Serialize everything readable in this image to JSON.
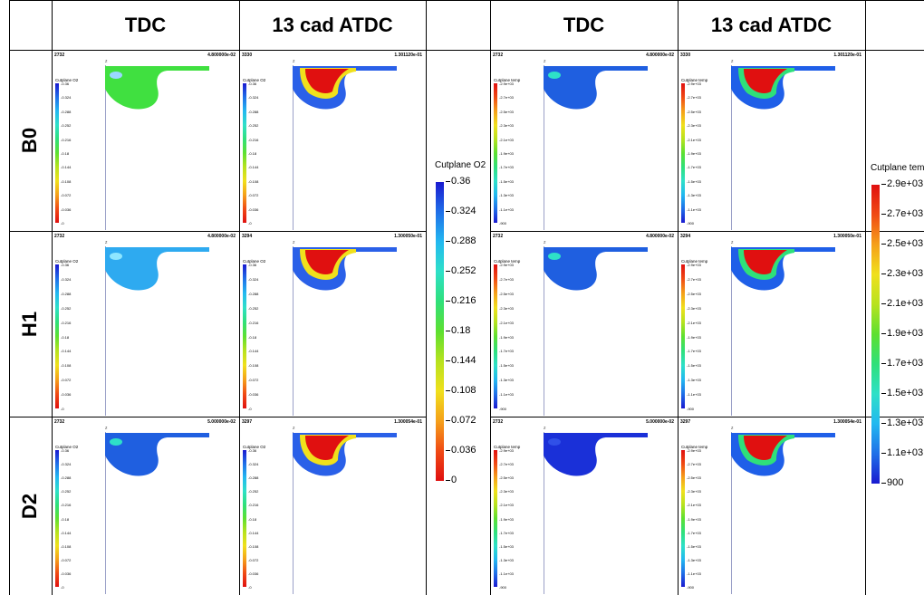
{
  "columns": {
    "left": {
      "tdc": "TDC",
      "atdc": "13 cad ATDC"
    },
    "right": {
      "tdc": "TDC",
      "atdc": "13 cad ATDC"
    }
  },
  "rows": [
    {
      "label": "B0",
      "o2_tdc": {
        "step": "2732",
        "time": "4.800000e-02",
        "title": "Cutplane O2",
        "fill": "green"
      },
      "o2_atdc": {
        "step": "3330",
        "time": "1.301120e-01",
        "title": "Cutplane O2",
        "fill": "mix"
      },
      "t_tdc": {
        "step": "2732",
        "time": "4.800000e-02",
        "title": "Cutplane temp",
        "fill": "blue"
      },
      "t_atdc": {
        "step": "3330",
        "time": "1.301120e-01",
        "title": "Cutplane temp",
        "fill": "hot"
      }
    },
    {
      "label": "H1",
      "o2_tdc": {
        "step": "2732",
        "time": "4.800000e-02",
        "title": "Cutplane O2",
        "fill": "cyan"
      },
      "o2_atdc": {
        "step": "3294",
        "time": "1.300050e-01",
        "title": "Cutplane O2",
        "fill": "mix"
      },
      "t_tdc": {
        "step": "2732",
        "time": "4.800000e-02",
        "title": "Cutplane temp",
        "fill": "blue"
      },
      "t_atdc": {
        "step": "3294",
        "time": "1.300050e-01",
        "title": "Cutplane temp",
        "fill": "hot"
      }
    },
    {
      "label": "D2",
      "o2_tdc": {
        "step": "2732",
        "time": "5.000000e-02",
        "title": "Cutplane O2",
        "fill": "blue"
      },
      "o2_atdc": {
        "step": "3297",
        "time": "1.300054e-01",
        "title": "Cutplane O2",
        "fill": "mix"
      },
      "t_tdc": {
        "step": "2732",
        "time": "5.000000e-02",
        "title": "Cutplane temp",
        "fill": "deepblue"
      },
      "t_atdc": {
        "step": "3297",
        "time": "1.300054e-01",
        "title": "Cutplane temp",
        "fill": "hot"
      }
    }
  ],
  "small_o2_ticks": [
    "0.36",
    "0.324",
    "0.288",
    "0.252",
    "0.216",
    "0.18",
    "0.144",
    "0.108",
    "0.072",
    "0.036",
    "0"
  ],
  "small_t_ticks": [
    "2.9e+03",
    "2.7e+03",
    "2.5e+03",
    "2.3e+03",
    "2.1e+03",
    "1.9e+03",
    "1.7e+03",
    "1.5e+03",
    "1.3e+03",
    "1.1e+03",
    "900"
  ],
  "axis_mark": "z",
  "legend_o2": {
    "title": "Cutplane O2",
    "labels": [
      "0.36",
      "0.324",
      "0.288",
      "0.252",
      "0.216",
      "0.18",
      "0.144",
      "0.108",
      "0.072",
      "0.036",
      "0"
    ]
  },
  "legend_temp": {
    "title": "Cutplane tem",
    "labels": [
      "2.9e+03",
      "2.7e+03",
      "2.5e+03",
      "2.3e+03",
      "2.1e+03",
      "1.9e+03",
      "1.7e+03",
      "1.5e+03",
      "1.3e+03",
      "1.1e+03",
      "900"
    ]
  },
  "colors": {
    "o2_scale": [
      "#1a1ad0",
      "#1f6fe8",
      "#22b8f0",
      "#2ee0c8",
      "#2fe07a",
      "#5de030",
      "#b7e21e",
      "#f0e01c",
      "#f5a01a",
      "#f04a14",
      "#e01010"
    ],
    "temp_scale": [
      "#e01010",
      "#f04a14",
      "#f5a01a",
      "#f0e01c",
      "#b7e21e",
      "#5de030",
      "#2fe07a",
      "#2ee0c8",
      "#22b8f0",
      "#1f6fe8",
      "#1a1ad0"
    ]
  }
}
